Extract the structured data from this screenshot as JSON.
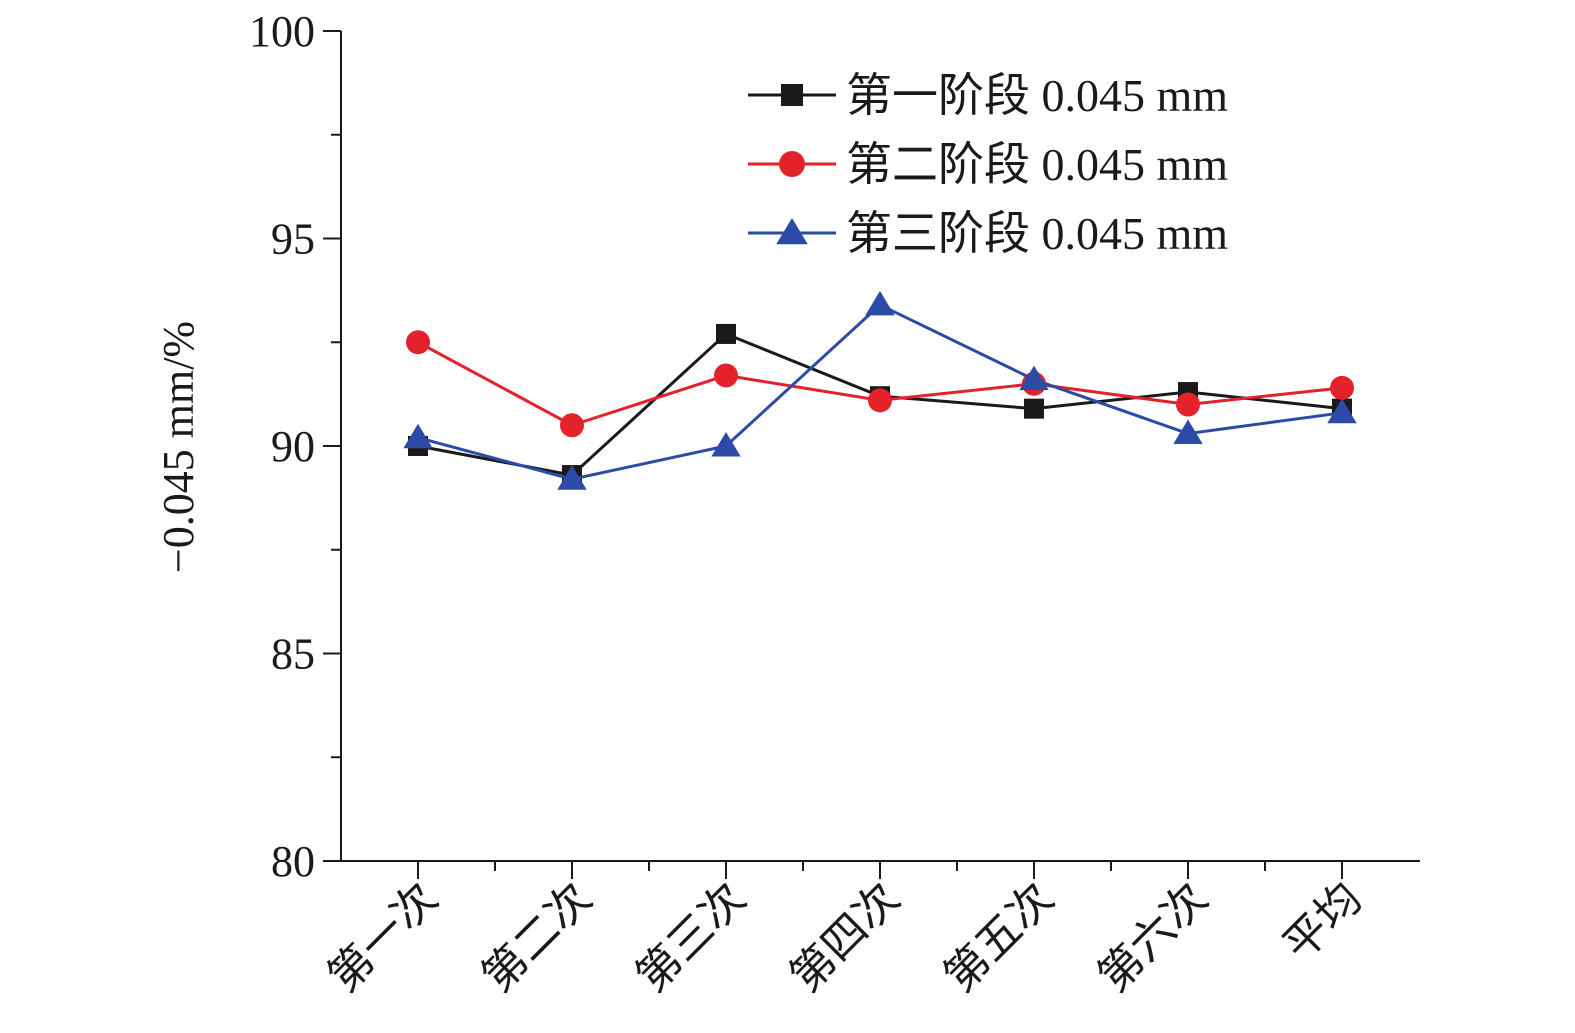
{
  "chart_data": {
    "type": "line",
    "title": "",
    "xlabel": "",
    "ylabel": "−0.045 mm/%",
    "categories": [
      "第一次",
      "第二次",
      "第三次",
      "第四次",
      "第五次",
      "第六次",
      "平均"
    ],
    "ylim": [
      80,
      100
    ],
    "yticks": [
      80,
      85,
      90,
      95,
      100
    ],
    "grid": false,
    "legend_position": "top-right",
    "series": [
      {
        "name": "第一阶段  0.045 mm",
        "color": "#1a1a1a",
        "marker": "square",
        "values": [
          90.0,
          89.3,
          92.7,
          91.2,
          90.9,
          91.3,
          90.9
        ]
      },
      {
        "name": "第二阶段  0.045 mm",
        "color": "#e3222b",
        "marker": "circle",
        "values": [
          92.5,
          90.5,
          91.7,
          91.1,
          91.5,
          91.0,
          91.4
        ]
      },
      {
        "name": "第三阶段  0.045 mm",
        "color": "#2b4ba6",
        "marker": "triangle",
        "values": [
          90.2,
          89.2,
          90.0,
          93.4,
          91.6,
          90.3,
          90.8
        ]
      }
    ]
  }
}
